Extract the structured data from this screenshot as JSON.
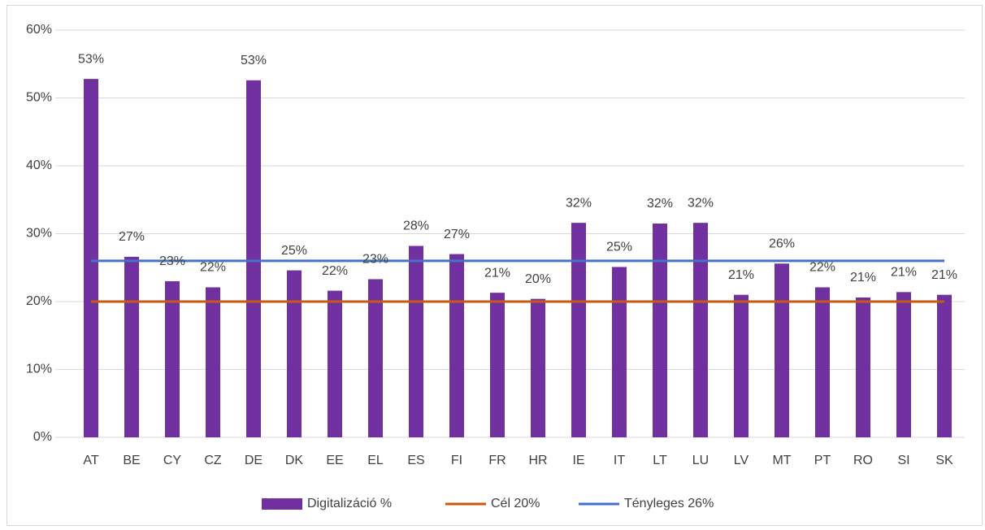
{
  "chart_data": {
    "type": "bar",
    "categories": [
      "AT",
      "BE",
      "CY",
      "CZ",
      "DE",
      "DK",
      "EE",
      "EL",
      "ES",
      "FI",
      "FR",
      "HR",
      "IE",
      "IT",
      "LT",
      "LU",
      "LV",
      "MT",
      "PT",
      "RO",
      "SI",
      "SK"
    ],
    "series": [
      {
        "name": "Digitalizáció %",
        "type": "bar",
        "color": "#7030a0",
        "values": [
          52.8,
          26.6,
          23.0,
          22.1,
          52.6,
          24.6,
          21.6,
          23.3,
          28.2,
          27.0,
          21.3,
          20.4,
          31.6,
          25.1,
          31.5,
          31.6,
          21.0,
          25.6,
          22.1,
          20.6,
          21.4,
          21.0
        ],
        "value_labels": [
          "53%",
          "27%",
          "23%",
          "22%",
          "53%",
          "25%",
          "22%",
          "23%",
          "28%",
          "27%",
          "21%",
          "20%",
          "32%",
          "25%",
          "32%",
          "32%",
          "21%",
          "26%",
          "22%",
          "21%",
          "21%",
          "21%"
        ]
      },
      {
        "name": "Cél 20%",
        "type": "line",
        "color": "#c55a11",
        "values": [
          20,
          20,
          20,
          20,
          20,
          20,
          20,
          20,
          20,
          20,
          20,
          20,
          20,
          20,
          20,
          20,
          20,
          20,
          20,
          20,
          20,
          20
        ]
      },
      {
        "name": "Tényleges 26%",
        "type": "line",
        "color": "#4472c4",
        "values": [
          26,
          26,
          26,
          26,
          26,
          26,
          26,
          26,
          26,
          26,
          26,
          26,
          26,
          26,
          26,
          26,
          26,
          26,
          26,
          26,
          26,
          26
        ]
      }
    ],
    "ylim": [
      0,
      60
    ],
    "yticks": [
      {
        "value": 0,
        "label": "0%"
      },
      {
        "value": 10,
        "label": "10%"
      },
      {
        "value": 20,
        "label": "20%"
      },
      {
        "value": 30,
        "label": "30%"
      },
      {
        "value": 40,
        "label": "40%"
      },
      {
        "value": 50,
        "label": "50%"
      },
      {
        "value": 60,
        "label": "60%"
      }
    ],
    "grid": true,
    "legend": "bottom"
  }
}
